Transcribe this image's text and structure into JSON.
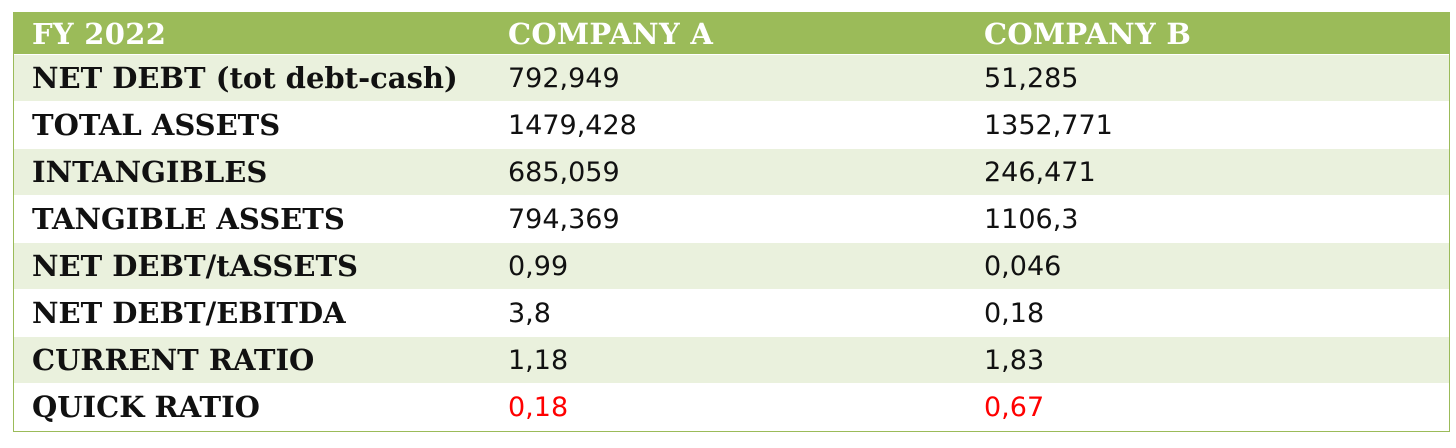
{
  "table": {
    "headers": [
      "FY 2022",
      "COMPANY A",
      "COMPANY B"
    ],
    "rows": [
      {
        "label": "NET DEBT (tot debt-cash)",
        "company_a": "792,949",
        "company_b": "51,285"
      },
      {
        "label": "TOTAL ASSETS",
        "company_a": "1479,428",
        "company_b": "1352,771"
      },
      {
        "label": "INTANGIBLES",
        "company_a": "685,059",
        "company_b": "246,471"
      },
      {
        "label": "TANGIBLE ASSETS",
        "company_a": "794,369",
        "company_b": "1106,3"
      },
      {
        "label": "NET DEBT/tASSETS",
        "company_a": "0,99",
        "company_b": "0,046"
      },
      {
        "label": "NET DEBT/EBITDA",
        "company_a": "3,8",
        "company_b": "0,18"
      },
      {
        "label": "CURRENT RATIO",
        "company_a": "1,18",
        "company_b": "1,83"
      },
      {
        "label": "QUICK RATIO",
        "company_a": "0,18",
        "company_b": "0,67"
      }
    ]
  },
  "colors": {
    "header_bg": "#9bbb59",
    "alt_row_bg": "#eaf1dd",
    "highlight_text": "#ff0000"
  }
}
